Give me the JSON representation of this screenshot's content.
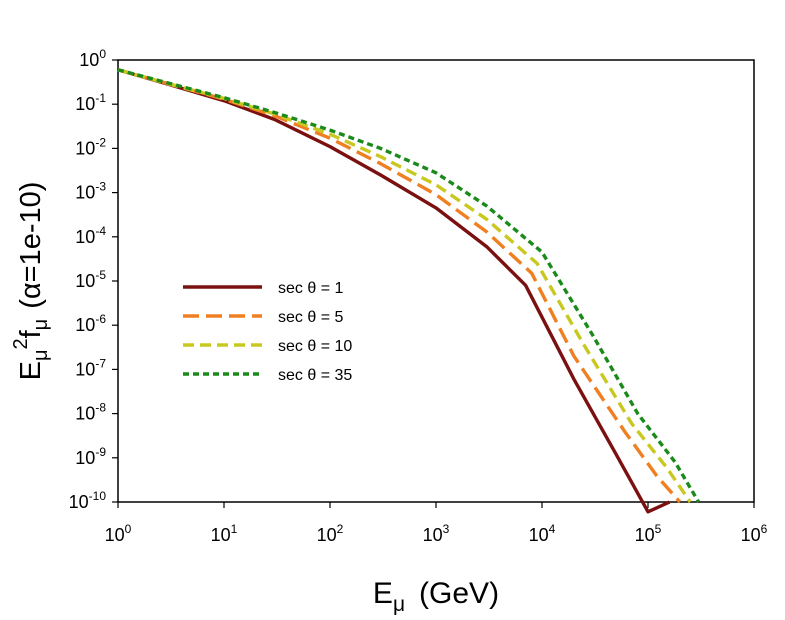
{
  "chart_data": {
    "type": "line",
    "xscale": "log",
    "yscale": "log",
    "xlim": [
      1,
      1000000
    ],
    "ylim": [
      1e-10,
      1
    ],
    "xlabel": {
      "base": "E",
      "sub": "μ",
      "unit": "(GeV)"
    },
    "ylabel": {
      "base": "E",
      "sub1": "μ",
      "sup": "2",
      "f": "f",
      "sub2": "μ",
      "param": "(α=1e-10)"
    },
    "x_ticks": [
      {
        "value": 1,
        "base": "10",
        "exp": "0"
      },
      {
        "value": 10,
        "base": "10",
        "exp": "1"
      },
      {
        "value": 100,
        "base": "10",
        "exp": "2"
      },
      {
        "value": 1000,
        "base": "10",
        "exp": "3"
      },
      {
        "value": 10000,
        "base": "10",
        "exp": "4"
      },
      {
        "value": 100000,
        "base": "10",
        "exp": "5"
      },
      {
        "value": 1000000,
        "base": "10",
        "exp": "6"
      }
    ],
    "y_ticks": [
      {
        "value": 1,
        "base": "10",
        "exp": "0"
      },
      {
        "value": 0.1,
        "base": "10",
        "exp": "-1"
      },
      {
        "value": 0.01,
        "base": "10",
        "exp": "-2"
      },
      {
        "value": 0.001,
        "base": "10",
        "exp": "-3"
      },
      {
        "value": 0.0001,
        "base": "10",
        "exp": "-4"
      },
      {
        "value": 1e-05,
        "base": "10",
        "exp": "-5"
      },
      {
        "value": 1e-06,
        "base": "10",
        "exp": "-6"
      },
      {
        "value": 1e-07,
        "base": "10",
        "exp": "-7"
      },
      {
        "value": 1e-08,
        "base": "10",
        "exp": "-8"
      },
      {
        "value": 1e-09,
        "base": "10",
        "exp": "-9"
      },
      {
        "value": 1e-10,
        "base": "10",
        "exp": "-10"
      }
    ],
    "series": [
      {
        "name": "sec θ = 1",
        "color": "#7b1010",
        "dash": "solid",
        "x": [
          1,
          3,
          10,
          30,
          100,
          300,
          1000,
          3000,
          7000,
          20000,
          50000,
          100000,
          160000
        ],
        "y": [
          0.6,
          0.28,
          0.12,
          0.045,
          0.011,
          0.0025,
          0.00045,
          6e-05,
          8e-06,
          6e-08,
          1.2e-09,
          6e-11,
          1e-10
        ]
      },
      {
        "name": "sec θ = 5",
        "color": "#f07f22",
        "dash": "long-dash",
        "x": [
          1,
          3,
          10,
          30,
          100,
          300,
          1000,
          3000,
          8000,
          20000,
          60000,
          120000,
          200000
        ],
        "y": [
          0.6,
          0.29,
          0.13,
          0.055,
          0.017,
          0.0045,
          0.0009,
          0.00013,
          1.5e-05,
          2e-07,
          4e-09,
          4e-10,
          1e-10
        ]
      },
      {
        "name": "sec θ = 10",
        "color": "#c8c820",
        "dash": "dash",
        "x": [
          1,
          3,
          10,
          30,
          100,
          300,
          1000,
          3000,
          9000,
          25000,
          70000,
          150000,
          250000
        ],
        "y": [
          0.6,
          0.29,
          0.135,
          0.06,
          0.021,
          0.0065,
          0.0015,
          0.00025,
          2.5e-05,
          3.5e-07,
          6e-09,
          6e-10,
          1e-10
        ]
      },
      {
        "name": "sec θ = 35",
        "color": "#1a8a1a",
        "dash": "short-dash",
        "x": [
          1,
          3,
          10,
          30,
          100,
          300,
          1000,
          3000,
          10000,
          30000,
          80000,
          180000,
          300000
        ],
        "y": [
          0.6,
          0.3,
          0.14,
          0.065,
          0.026,
          0.01,
          0.0028,
          0.0005,
          4.5e-05,
          6e-07,
          1e-08,
          8e-10,
          1e-10
        ]
      }
    ],
    "legend": {
      "location": "center-left"
    }
  }
}
